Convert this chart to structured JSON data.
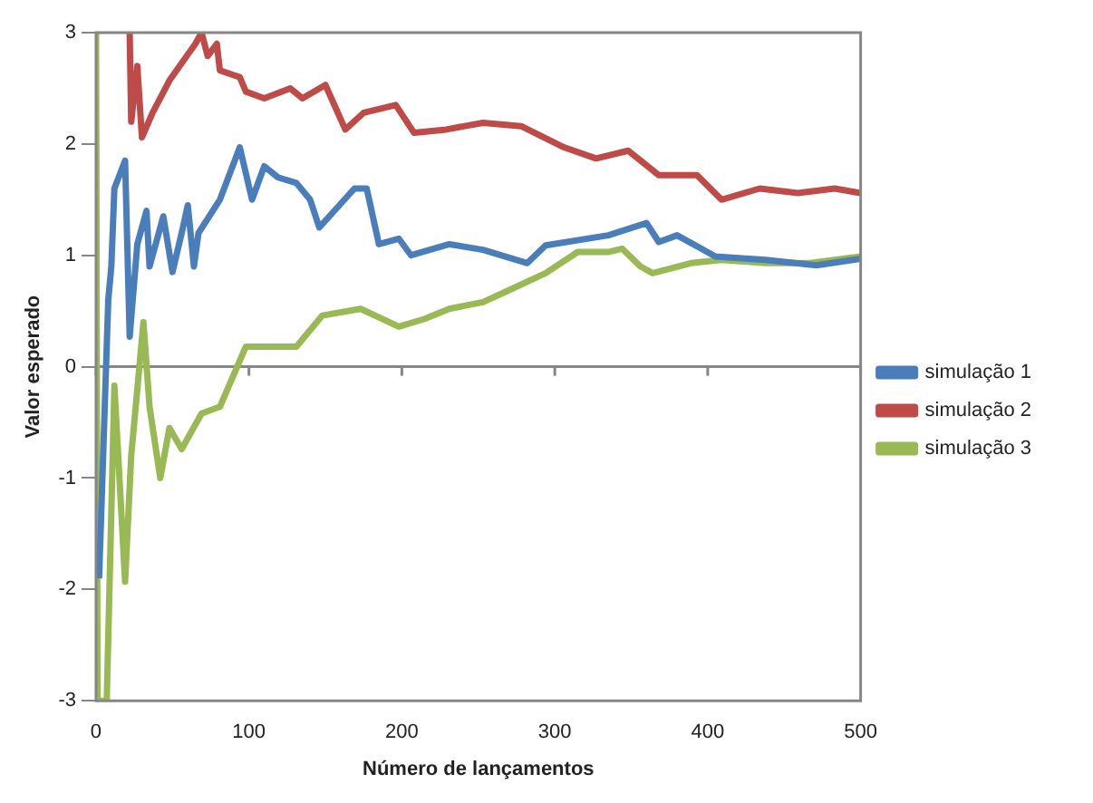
{
  "chart_data": {
    "type": "line",
    "xlabel": "Número de lançamentos",
    "ylabel": "Valor esperado",
    "xlim": [
      0,
      500
    ],
    "xticks": [
      0,
      100,
      200,
      300,
      400,
      500
    ],
    "ylim": [
      -3,
      3
    ],
    "yticks": [
      -3,
      -2,
      -1,
      0,
      1,
      2,
      3
    ],
    "grid": false,
    "legend": "right",
    "marker": "none",
    "line_style": "solid",
    "ref_lines": [
      {
        "axis": "y",
        "value": 0,
        "color": "#868686"
      }
    ],
    "series": [
      {
        "name": "simulação 1",
        "color": "#4a7ebb",
        "x": [
          2,
          8,
          10,
          12,
          19,
          22,
          27,
          33,
          35,
          44,
          50,
          56,
          60,
          64,
          67,
          81,
          94,
          102,
          110,
          119,
          131,
          140,
          146,
          169,
          177,
          185,
          198,
          206,
          231,
          253,
          282,
          294,
          335,
          360,
          368,
          380,
          405,
          438,
          471,
          500
        ],
        "values": [
          -1.9,
          0.6,
          0.9,
          1.6,
          1.85,
          0.27,
          1.1,
          1.4,
          0.9,
          1.35,
          0.85,
          1.2,
          1.45,
          0.9,
          1.2,
          1.5,
          1.97,
          1.5,
          1.8,
          1.7,
          1.65,
          1.5,
          1.25,
          1.6,
          1.6,
          1.1,
          1.15,
          1.0,
          1.1,
          1.05,
          0.93,
          1.09,
          1.18,
          1.29,
          1.12,
          1.18,
          0.99,
          0.96,
          0.91,
          0.97
        ]
      },
      {
        "name": "simulação 2",
        "color": "#be4b48",
        "x": [
          22,
          23,
          27,
          30,
          37,
          48,
          65,
          69,
          73,
          79,
          81,
          94,
          98,
          110,
          127,
          135,
          150,
          163,
          175,
          196,
          208,
          229,
          253,
          278,
          306,
          327,
          348,
          368,
          393,
          409,
          434,
          459,
          483,
          500
        ],
        "values": [
          3.0,
          2.2,
          2.7,
          2.06,
          2.28,
          2.57,
          2.9,
          3.0,
          2.79,
          2.9,
          2.66,
          2.6,
          2.47,
          2.41,
          2.5,
          2.41,
          2.53,
          2.13,
          2.28,
          2.35,
          2.1,
          2.13,
          2.19,
          2.16,
          1.97,
          1.87,
          1.94,
          1.72,
          1.72,
          1.5,
          1.6,
          1.56,
          1.6,
          1.56
        ]
      },
      {
        "name": "simulação 3",
        "color": "#98b954",
        "x": [
          0,
          1,
          7,
          12,
          15,
          19,
          23,
          31,
          35,
          42,
          48,
          56,
          69,
          81,
          98,
          110,
          131,
          148,
          173,
          198,
          215,
          231,
          253,
          269,
          294,
          315,
          335,
          344,
          356,
          364,
          389,
          409,
          438,
          467,
          500
        ],
        "values": [
          3,
          -3,
          -3,
          -0.17,
          -0.92,
          -1.93,
          -0.8,
          0.4,
          -0.36,
          -1.0,
          -0.55,
          -0.74,
          -0.42,
          -0.36,
          0.18,
          0.18,
          0.18,
          0.46,
          0.52,
          0.36,
          0.43,
          0.52,
          0.58,
          0.68,
          0.84,
          1.03,
          1.03,
          1.06,
          0.9,
          0.84,
          0.93,
          0.96,
          0.93,
          0.93,
          0.99
        ]
      }
    ]
  }
}
